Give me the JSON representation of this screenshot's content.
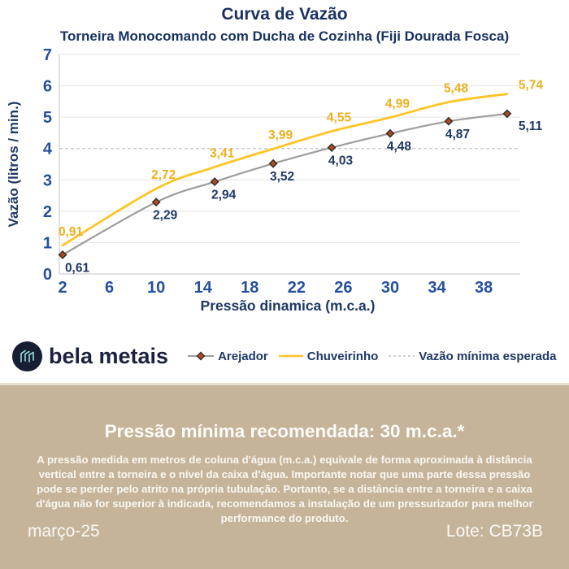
{
  "header": {
    "title": "Curva de Vazão",
    "subtitle": "Torneira Monocomando com Ducha de Cozinha (Fiji Dourada Fosca)"
  },
  "chart_data": {
    "type": "line",
    "title": "Curva de Vazão",
    "subtitle": "Torneira Monocomando com Ducha de Cozinha (Fiji Dourada Fosca)",
    "xlabel": "Pressão dinamica (m.c.a.)",
    "ylabel": "Vazão (litros / min.)",
    "x": [
      2,
      10,
      15,
      20,
      25,
      30,
      35,
      40
    ],
    "xticks": [
      2,
      6,
      10,
      14,
      18,
      22,
      26,
      30,
      34,
      38
    ],
    "yticks": [
      0,
      1,
      2,
      3,
      4,
      5,
      6,
      7
    ],
    "xlim": [
      1.72,
      41.12
    ],
    "ylim": [
      0,
      7
    ],
    "grid": "horizontal",
    "legend_position": "bottom",
    "series": [
      {
        "name": "Arejador",
        "values": [
          0.61,
          2.29,
          2.94,
          3.52,
          4.03,
          4.48,
          4.87,
          5.11
        ],
        "labels": [
          "0,61",
          "2,29",
          "2,94",
          "3,52",
          "4,03",
          "4,48",
          "4,87",
          "5,11"
        ],
        "color": "#9d9d9d",
        "label_color": "#1f3864",
        "label_position": "below",
        "marker": "diamond",
        "marker_fill": "#b04a1e",
        "marker_stroke": "#33302e"
      },
      {
        "name": "Chuveirinho",
        "values": [
          0.91,
          2.72,
          3.41,
          3.99,
          4.55,
          4.99,
          5.48,
          5.74
        ],
        "labels": [
          "0,91",
          "2,72",
          "3,41",
          "3,99",
          "4,55",
          "4,99",
          "5,48",
          "5,74"
        ],
        "color": "#ffc425",
        "label_color": "#edb01c",
        "label_position": "above",
        "marker": "none"
      }
    ],
    "reference_line": {
      "name": "Vazão mínima esperada",
      "y": 4,
      "style": "dashed",
      "color": "#c3c3c3"
    }
  },
  "axis_style": {
    "tick_color": "#26509c",
    "grid_color": "#e3e3e3",
    "axis_color": "#cfcfcf"
  },
  "logo": {
    "text": "bela metais"
  },
  "panel": {
    "heading": "Pressão mínima recomendada: 30 m.c.a.*",
    "body": "A pressão medida em metros de coluna d'água (m.c.a.) equivale de forma aproximada à distância vertical entre a torneira e o nível da caixa d'água. Importante notar que uma parte dessa pressão pode se perder pelo atrito na própria tubulação. Portanto, se a distância entre a torneira e a caixa d'água não for superior à indicada, recomendamos a instalação de um pressurizador para melhor performance do produto.",
    "date": "março-25",
    "lot": "Lote: CB73B"
  }
}
